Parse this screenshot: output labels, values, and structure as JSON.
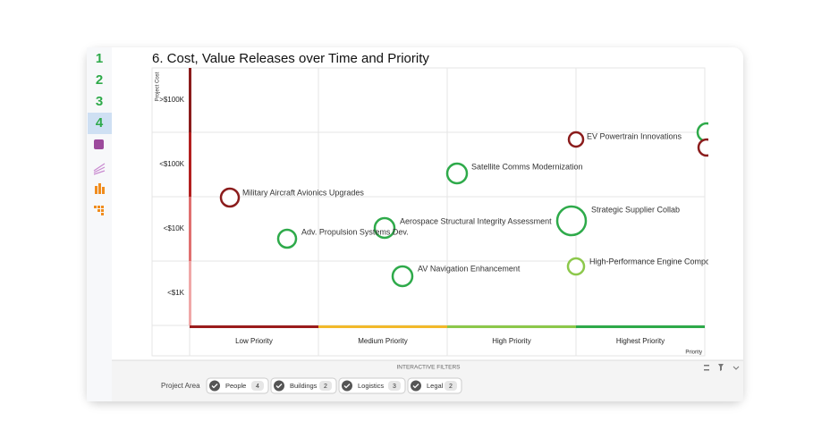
{
  "nav": [
    "1",
    "2",
    "3",
    "4"
  ],
  "title": "6. Cost, Value Releases over Time and Priority",
  "y_axis": {
    "label": "Project Cost",
    "categories": [
      ">$100K",
      "<$100K",
      "<$10K",
      "<$1K"
    ]
  },
  "x_axis": {
    "label": "Priority",
    "categories": [
      "Low Priority",
      "Medium Priority",
      "High Priority",
      "Highest Priority"
    ]
  },
  "projects": [
    {
      "label": "EV Powertrain Innovations",
      "color": "#8b1c1c"
    },
    {
      "label": "Satellite Comms Modernization",
      "color": "#2eaa4a"
    },
    {
      "label": "Military Aircraft Avionics Upgrades",
      "color": "#8b1c1c"
    },
    {
      "label": "Aerospace Structural Integrity Assessment",
      "color": "#2eaa4a"
    },
    {
      "label": "Strategic Supplier Collab",
      "color": "#2eaa4a"
    },
    {
      "label": "Adv. Propulsion Systems Dev.",
      "color": "#2eaa4a"
    },
    {
      "label": "AV Navigation Enhancement",
      "color": "#2eaa4a"
    },
    {
      "label": "High-Performance Engine Compo",
      "color": "#8cc84b"
    }
  ],
  "filters": {
    "title": "INTERACTIVE FILTERS",
    "label": "Project Area",
    "chips": [
      {
        "name": "People",
        "count": "4"
      },
      {
        "name": "Buildings",
        "count": "2"
      },
      {
        "name": "Logistics",
        "count": "3"
      },
      {
        "name": "Legal",
        "count": "2"
      }
    ]
  }
}
